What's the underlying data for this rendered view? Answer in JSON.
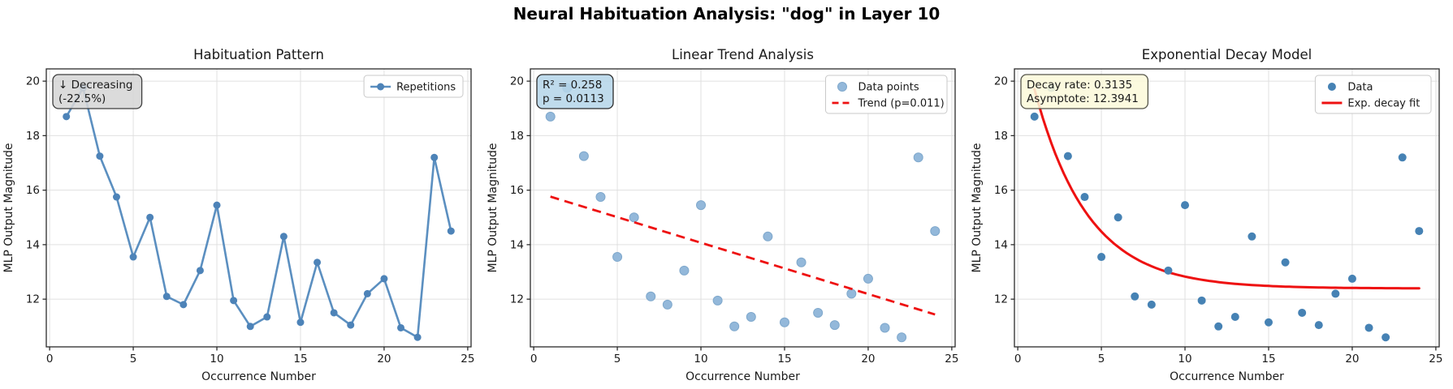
{
  "figure_title": "Neural Habituation Analysis: \"dog\" in Layer 10",
  "colors": {
    "line_blue": "#5b8fc0",
    "marker_blue": "#4d83b8",
    "scatter_light_blue": "#93b8da",
    "scatter_solid_blue": "#4682b4",
    "fit_red": "#ee1111",
    "grid": "#e0e0e0",
    "spine": "#2b2b2b",
    "text": "#1a1a1a",
    "annotation1_bg": "#d6d6d6",
    "annotation2_bg": "#b5d6e9",
    "annotation3_bg": "#fcf9da"
  },
  "chart_data": {
    "type": [
      "line",
      "scatter",
      "scatter"
    ],
    "x": [
      1,
      2,
      3,
      4,
      5,
      6,
      7,
      8,
      9,
      10,
      11,
      12,
      13,
      14,
      15,
      16,
      17,
      18,
      19,
      20,
      21,
      22,
      23,
      24
    ],
    "y": [
      18.7,
      19.75,
      17.25,
      15.75,
      13.55,
      15.0,
      12.1,
      11.8,
      13.05,
      15.45,
      11.95,
      11.0,
      11.35,
      14.3,
      11.15,
      13.35,
      11.5,
      11.05,
      12.2,
      12.75,
      10.95,
      10.6,
      17.2,
      14.5
    ],
    "axes": {
      "xlabel": "Occurrence Number",
      "ylabel": "MLP Output Magnitude",
      "xticks": [
        0,
        5,
        10,
        15,
        20,
        25
      ],
      "yticks": [
        12,
        14,
        16,
        18,
        20
      ],
      "xlim": [
        -0.2,
        25.2
      ],
      "ylim": [
        10.25,
        20.45
      ],
      "grid": true
    },
    "charts": [
      {
        "title": "Habituation Pattern",
        "kind": "line-markers",
        "legend": [
          {
            "label": "Repetitions",
            "handle": "line-marker"
          }
        ],
        "legend_position": "upper right",
        "annotation": {
          "lines": [
            "↓ Decreasing",
            "(-22.5%)"
          ],
          "fill": "#d6d6d6",
          "stroke": "#3d3d3d"
        }
      },
      {
        "title": "Linear Trend Analysis",
        "kind": "scatter-trend",
        "legend": [
          {
            "label": "Data points",
            "handle": "marker"
          },
          {
            "label": "Trend (p=0.011)",
            "handle": "dashed"
          }
        ],
        "legend_position": "upper right",
        "annotation": {
          "lines": [
            "R² = 0.258",
            "p = 0.0113"
          ],
          "fill": "#b5d6e9",
          "stroke": "#2b2b2b"
        },
        "trend": {
          "slope": -0.188,
          "intercept": 15.95,
          "x_start": 1,
          "x_end": 24
        }
      },
      {
        "title": "Exponential Decay Model",
        "kind": "scatter-expfit",
        "legend": [
          {
            "label": "Data",
            "handle": "marker-solid"
          },
          {
            "label": "Exp. decay fit",
            "handle": "solid"
          }
        ],
        "legend_position": "upper right",
        "annotation": {
          "lines": [
            "Decay rate: 0.3135",
            "Asymptote: 12.3941"
          ],
          "fill": "#fcf9da",
          "stroke": "#55554a"
        },
        "fit": {
          "amplitude": 10.0,
          "decay_rate": 0.3135,
          "asymptote": 12.3941,
          "x_start": 1,
          "x_end": 24
        }
      }
    ]
  }
}
